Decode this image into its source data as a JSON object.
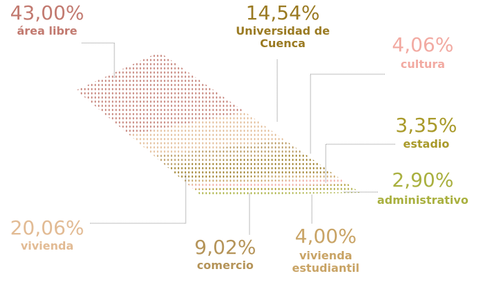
{
  "chart_data": {
    "type": "dot-area",
    "categories": [
      "área libre",
      "vivienda",
      "comercio",
      "Universidad de Cuenca",
      "vivienda estudiantil",
      "cultura",
      "estadio",
      "administrativo"
    ],
    "values": [
      43.0,
      20.06,
      9.02,
      14.54,
      4.0,
      4.06,
      3.35,
      2.9
    ],
    "value_labels": [
      "43,00%",
      "20,06%",
      "9,02%",
      "14,54%",
      "4,00%",
      "4,06%",
      "3,35%",
      "2,90%"
    ],
    "colors": [
      "#c27a70",
      "#e2bb94",
      "#b59459",
      "#9a7a22",
      "#c9a466",
      "#f2aaa2",
      "#a99a2a",
      "#a9b03f"
    ]
  }
}
